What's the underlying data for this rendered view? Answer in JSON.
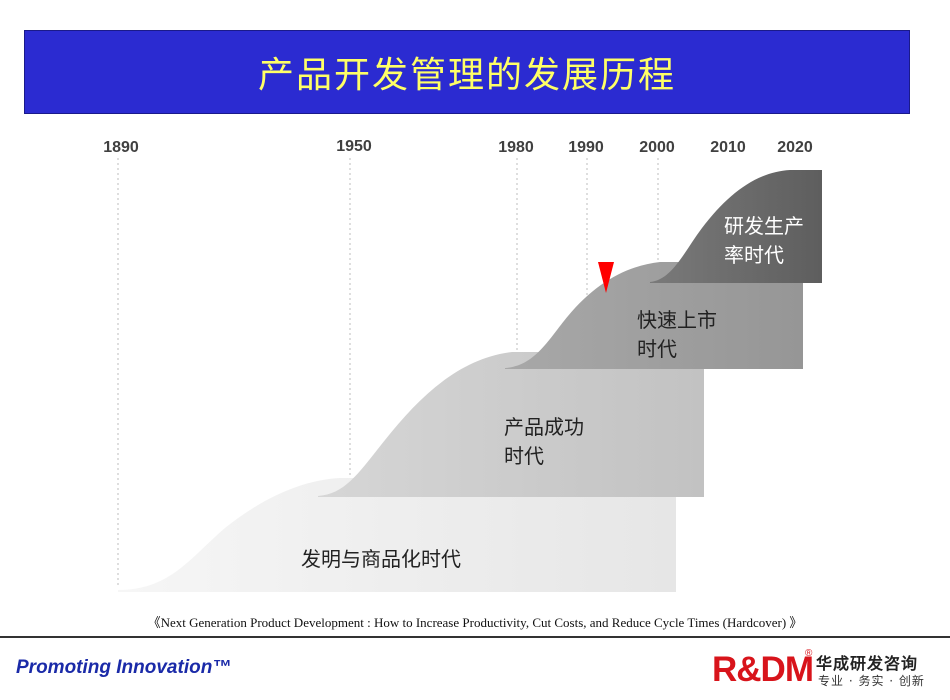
{
  "title": "产品开发管理的发展历程",
  "years": [
    "1890",
    "1950",
    "1980",
    "1990",
    "2000",
    "2010",
    "2020"
  ],
  "eras": [
    {
      "line1": "发明与商品化时代",
      "line2": ""
    },
    {
      "line1": "产品成功",
      "line2": "时代"
    },
    {
      "line1": "快速上市",
      "line2": "时代"
    },
    {
      "line1": "研发生产",
      "line2": "率时代"
    }
  ],
  "citation": "《Next Generation Product Development : How to Increase Productivity, Cut Costs, and Reduce Cycle Times (Hardcover) 》",
  "footer": {
    "slogan": "Promoting Innovation™",
    "logo_mark": "R&DM",
    "logo_registered": "®",
    "logo_cn": "华成研发咨询",
    "logo_tagline": "专业 · 务实 · 创新"
  },
  "colors": {
    "title_bg": "#2b2bd1",
    "title_text": "#ffff66",
    "era1": "#ececec",
    "era2": "#c8c8c8",
    "era3": "#9a9a9a",
    "era4": "#6b6b6b",
    "marker": "#ff0000",
    "slogan": "#1a2aa8",
    "logo_red": "#d8141b"
  }
}
